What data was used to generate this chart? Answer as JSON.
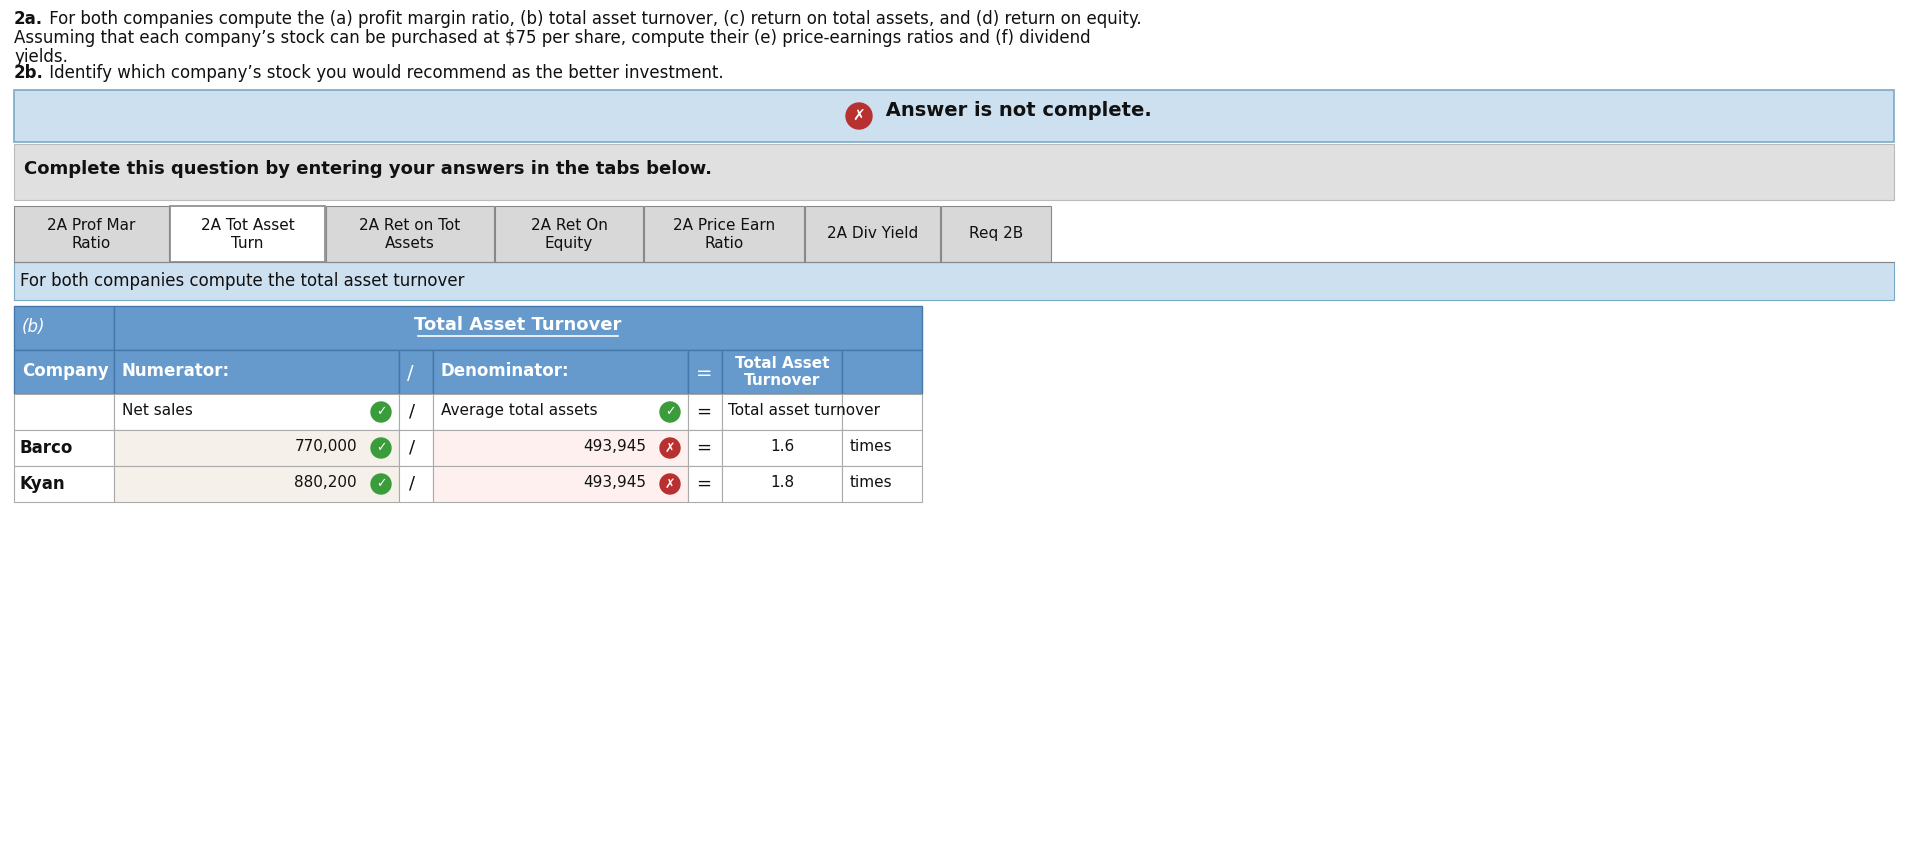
{
  "line1": "2a. For both companies compute the (a) profit margin ratio, (b) total asset turnover, (c) return on total assets, and (d) return on equity.",
  "line2": "Assuming that each company’s stock can be purchased at $75 per share, compute their (e) price-earnings ratios and (f) dividend",
  "line3": "yields.",
  "line4": "2b. Identify which company’s stock you would recommend as the better investment.",
  "answer_banner_text": "Answer is not complete.",
  "complete_text": "Complete this question by entering your answers in the tabs below.",
  "tabs": [
    "2A Prof Mar\nRatio",
    "2A Tot Asset\nTurn",
    "2A Ret on Tot\nAssets",
    "2A Ret On\nEquity",
    "2A Price Earn\nRatio",
    "2A Div Yield",
    "Req 2B"
  ],
  "active_tab_index": 1,
  "subheader_text": "For both companies compute the total asset turnover",
  "table_header_left": "(b)",
  "table_header_center": "Total Asset Turnover",
  "row_barco_num": "770,000",
  "row_barco_denom": "493,945",
  "row_barco_result": "1.6",
  "row_barco_unit": "times",
  "row_kyan_num": "880,200",
  "row_kyan_denom": "493,945",
  "row_kyan_result": "1.8",
  "row_kyan_unit": "times",
  "bg_white": "#ffffff",
  "bg_light_blue": "#cce0f0",
  "bg_gray": "#e0e0e0",
  "bg_tab_active": "#ffffff",
  "bg_tab_inactive": "#d8d8d8",
  "bg_table_header": "#6699cc",
  "bg_table_row_white": "#ffffff",
  "bg_table_row_cream": "#fff8f0",
  "color_green": "#3a9c3a",
  "color_red": "#b83030",
  "color_text": "#111111",
  "border_color": "#999999",
  "banner_border": "#7aaac8"
}
